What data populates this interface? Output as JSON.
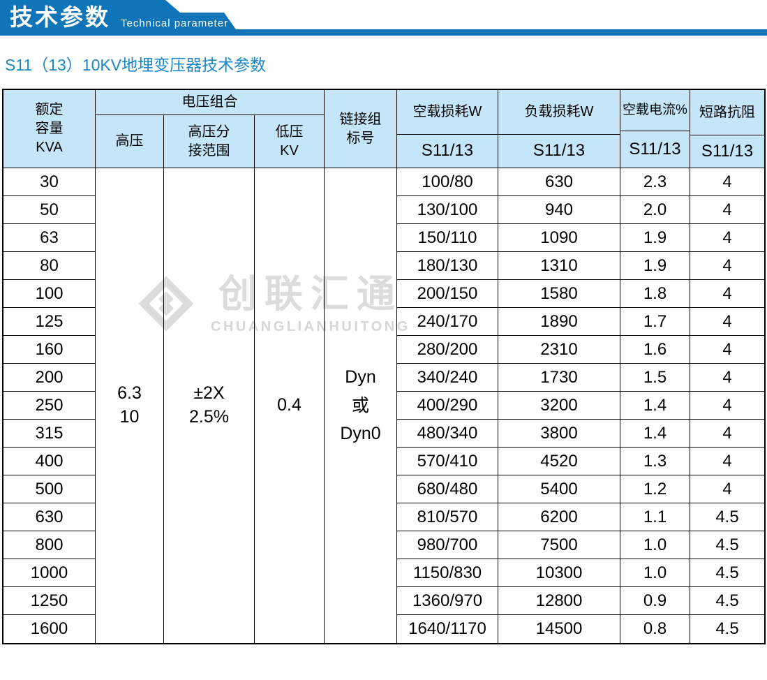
{
  "banner": {
    "title": "技术参数",
    "subtitle": "Technical parameter"
  },
  "page": {
    "heading": "S11（13）10KV地埋变压器技术参数"
  },
  "watermark": {
    "cn": "创联汇通",
    "en": "CHUANGLIANHUITONG"
  },
  "colors": {
    "banner_blue": "#0f74b8",
    "heading_blue": "#1987c8",
    "table_header_bg": "#c5e6f8",
    "border_black": "#000000",
    "watermark_gray": "#dcdcdc"
  },
  "table": {
    "headers": {
      "capacity": "额定\n容量\nKVA",
      "voltage_group": "电压组合",
      "hv": "高压",
      "hv_tap": "高压分\n接范围",
      "lv": "低压\nKV",
      "link_group": "链接组\n标号",
      "no_load_loss": "空载损耗W",
      "load_loss": "负载损耗W",
      "no_load_current": "空载电流%",
      "impedance": "短路抗阻",
      "model": "S11/13"
    },
    "merged": {
      "hv": "6.3\n10",
      "hv_tap": "±2X\n2.5%",
      "lv": "0.4",
      "link_group": "Dyn\n或\nDyn0"
    },
    "rows": [
      {
        "capacity": "30",
        "no_load_loss": "100/80",
        "load_loss": "630",
        "no_load_current": "2.3",
        "impedance": "4"
      },
      {
        "capacity": "50",
        "no_load_loss": "130/100",
        "load_loss": "940",
        "no_load_current": "2.0",
        "impedance": "4"
      },
      {
        "capacity": "63",
        "no_load_loss": "150/110",
        "load_loss": "1090",
        "no_load_current": "1.9",
        "impedance": "4"
      },
      {
        "capacity": "80",
        "no_load_loss": "180/130",
        "load_loss": "1310",
        "no_load_current": "1.9",
        "impedance": "4"
      },
      {
        "capacity": "100",
        "no_load_loss": "200/150",
        "load_loss": "1580",
        "no_load_current": "1.8",
        "impedance": "4"
      },
      {
        "capacity": "125",
        "no_load_loss": "240/170",
        "load_loss": "1890",
        "no_load_current": "1.7",
        "impedance": "4"
      },
      {
        "capacity": "160",
        "no_load_loss": "280/200",
        "load_loss": "2310",
        "no_load_current": "1.6",
        "impedance": "4"
      },
      {
        "capacity": "200",
        "no_load_loss": "340/240",
        "load_loss": "1730",
        "no_load_current": "1.5",
        "impedance": "4"
      },
      {
        "capacity": "250",
        "no_load_loss": "400/290",
        "load_loss": "3200",
        "no_load_current": "1.4",
        "impedance": "4"
      },
      {
        "capacity": "315",
        "no_load_loss": "480/340",
        "load_loss": "3800",
        "no_load_current": "1.4",
        "impedance": "4"
      },
      {
        "capacity": "400",
        "no_load_loss": "570/410",
        "load_loss": "4520",
        "no_load_current": "1.3",
        "impedance": "4"
      },
      {
        "capacity": "500",
        "no_load_loss": "680/480",
        "load_loss": "5400",
        "no_load_current": "1.2",
        "impedance": "4"
      },
      {
        "capacity": "630",
        "no_load_loss": "810/570",
        "load_loss": "6200",
        "no_load_current": "1.1",
        "impedance": "4.5"
      },
      {
        "capacity": "800",
        "no_load_loss": "980/700",
        "load_loss": "7500",
        "no_load_current": "1.0",
        "impedance": "4.5"
      },
      {
        "capacity": "1000",
        "no_load_loss": "1150/830",
        "load_loss": "10300",
        "no_load_current": "1.0",
        "impedance": "4.5"
      },
      {
        "capacity": "1250",
        "no_load_loss": "1360/970",
        "load_loss": "12800",
        "no_load_current": "0.9",
        "impedance": "4.5"
      },
      {
        "capacity": "1600",
        "no_load_loss": "1640/1170",
        "load_loss": "14500",
        "no_load_current": "0.8",
        "impedance": "4.5"
      }
    ]
  }
}
